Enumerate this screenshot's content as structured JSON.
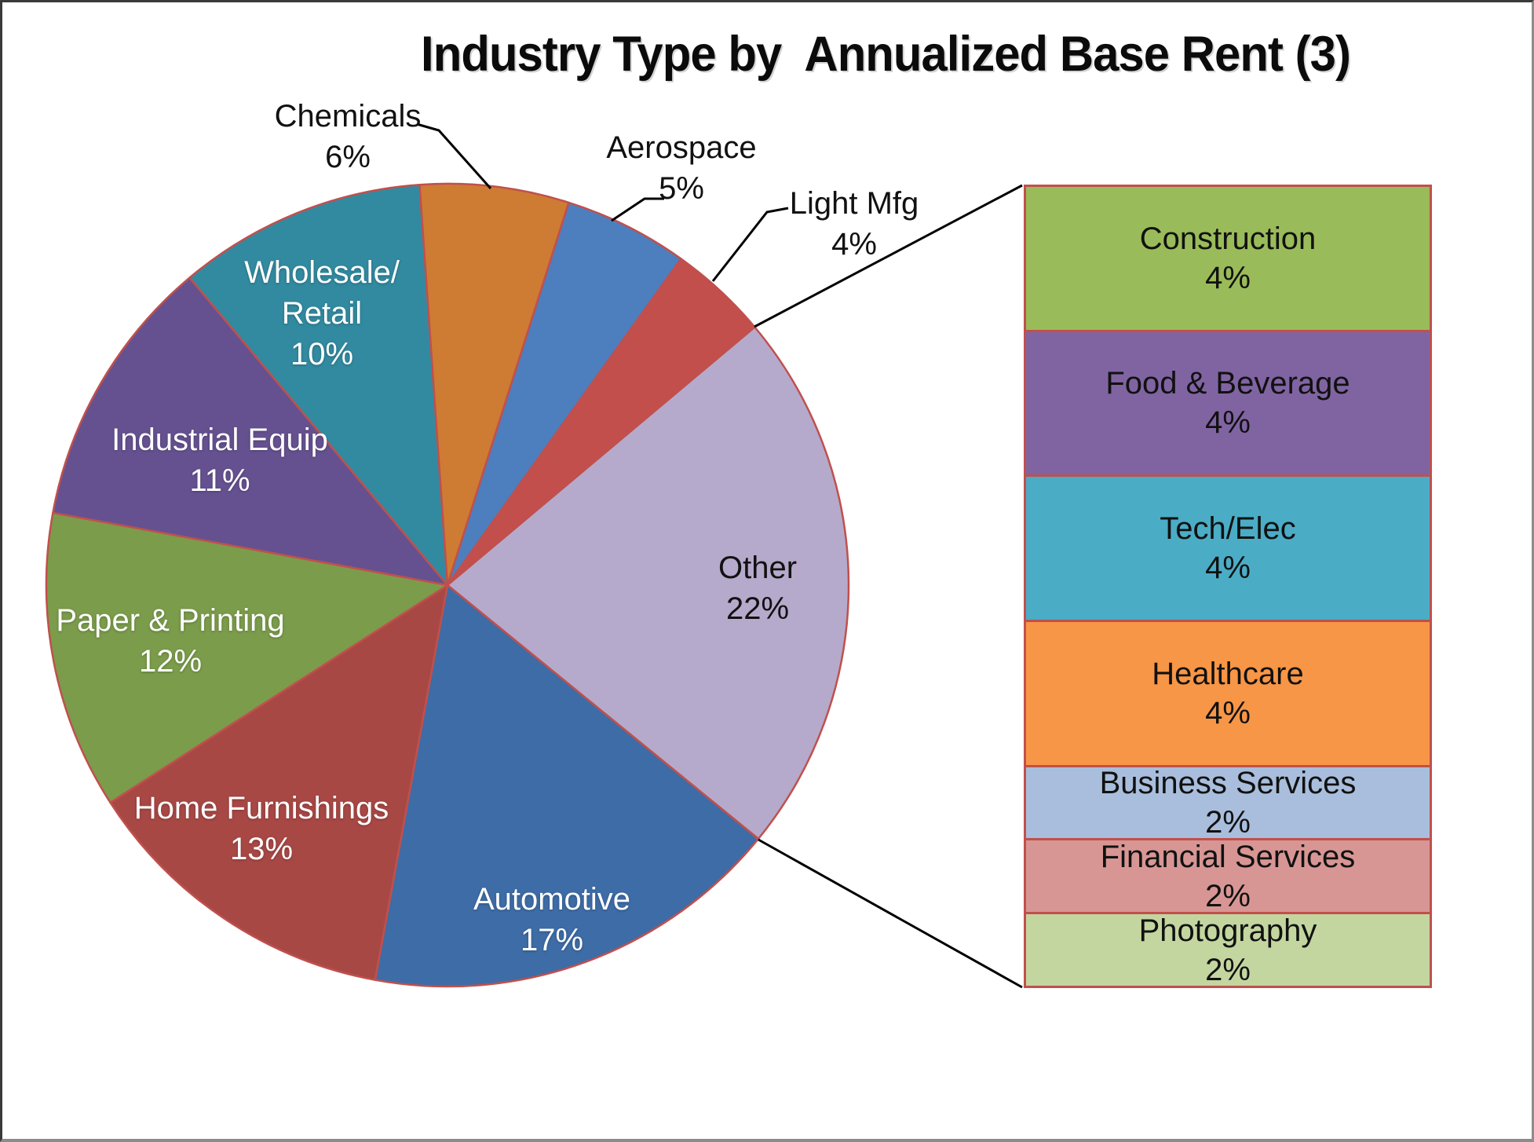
{
  "chart_data": {
    "type": "pie",
    "title": "Industry Type by  Annualized Base Rent (3)",
    "legend_position": "none",
    "grid": false,
    "start_angle_deg": -4,
    "slice_border_color": "#C0504D",
    "leader_line_color": "#000000",
    "slices": [
      {
        "label": "Chemicals",
        "value": 6,
        "pct_label": "6%",
        "color": "#CE7B34"
      },
      {
        "label": "Aerospace",
        "value": 5,
        "pct_label": "5%",
        "color": "#4D7EBD"
      },
      {
        "label": "Light Mfg",
        "value": 4,
        "pct_label": "4%",
        "color": "#C24F4C"
      },
      {
        "label": "Other",
        "value": 22,
        "pct_label": "22%",
        "color": "#B5AACB"
      },
      {
        "label": "Automotive",
        "value": 17,
        "pct_label": "17%",
        "color": "#3E6CA6"
      },
      {
        "label": "Home Furnishings",
        "value": 13,
        "pct_label": "13%",
        "color": "#A84845"
      },
      {
        "label": "Paper & Printing",
        "value": 12,
        "pct_label": "12%",
        "color": "#7B9C4B"
      },
      {
        "label": "Industrial Equip",
        "value": 11,
        "pct_label": "11%",
        "color": "#655190"
      },
      {
        "label": "Wholesale/ Retail",
        "value": 10,
        "pct_label": "10%",
        "color": "#328AA0"
      }
    ],
    "breakdown": {
      "parent": "Other",
      "type": "stacked-bar",
      "segments": [
        {
          "label": "Construction",
          "value": 4,
          "pct_label": "4%",
          "color": "#9ABB59"
        },
        {
          "label": "Food & Beverage",
          "value": 4,
          "pct_label": "4%",
          "color": "#8064A2"
        },
        {
          "label": "Tech/Elec",
          "value": 4,
          "pct_label": "4%",
          "color": "#4BACC6"
        },
        {
          "label": "Healthcare",
          "value": 4,
          "pct_label": "4%",
          "color": "#F79646"
        },
        {
          "label": "Business Services",
          "value": 2,
          "pct_label": "2%",
          "color": "#A9BEDC"
        },
        {
          "label": "Financial Services",
          "value": 2,
          "pct_label": "2%",
          "color": "#D79694"
        },
        {
          "label": "Photography",
          "value": 2,
          "pct_label": "2%",
          "color": "#C4D6A0"
        }
      ]
    }
  }
}
